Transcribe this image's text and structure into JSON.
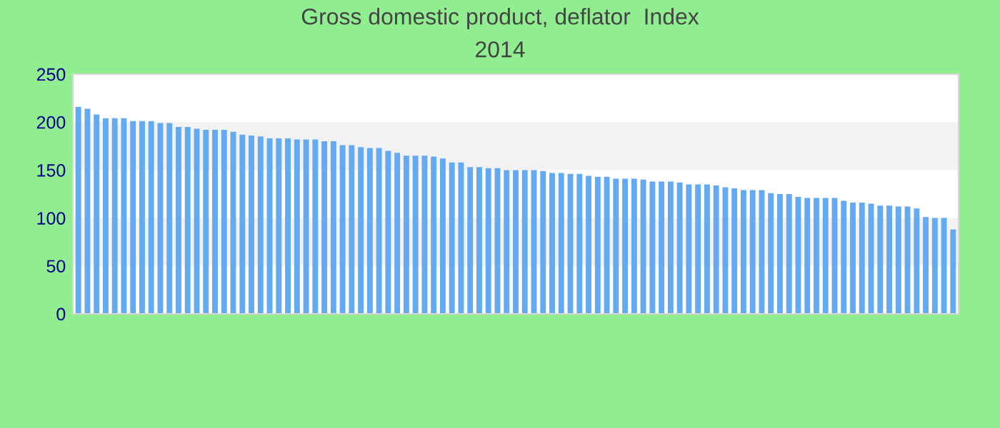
{
  "chart_data": {
    "type": "bar",
    "title": "Gross domestic product, deflator  Index",
    "subtitle": "2014",
    "categories": [
      null,
      null,
      null,
      null,
      null,
      null,
      null,
      null,
      null,
      null,
      null,
      null,
      null,
      null,
      null,
      null,
      null,
      null,
      null,
      null,
      null,
      null,
      null,
      null,
      null,
      null,
      null,
      null,
      null,
      null,
      null,
      null,
      null,
      null,
      null,
      null,
      null,
      null,
      null,
      null,
      null,
      null,
      null,
      null,
      null,
      null,
      null,
      null,
      null,
      null,
      null,
      null,
      null,
      null,
      null,
      null,
      null,
      null,
      null,
      null,
      null,
      null,
      null,
      null,
      null,
      null,
      null,
      null,
      null,
      null,
      null,
      null,
      null,
      null,
      null,
      null,
      null,
      null,
      null,
      null,
      null,
      null,
      null,
      null,
      null,
      null,
      null,
      null,
      null,
      null,
      null,
      null,
      null,
      null,
      null,
      null,
      null
    ],
    "values": [
      216,
      214,
      208,
      204,
      204,
      204,
      201,
      201,
      201,
      199,
      199,
      195,
      195,
      193,
      192,
      192,
      192,
      190,
      187,
      186,
      185,
      183,
      183,
      183,
      182,
      182,
      182,
      180,
      180,
      176,
      176,
      174,
      173,
      173,
      170,
      168,
      165,
      165,
      165,
      164,
      162,
      158,
      158,
      153,
      153,
      152,
      152,
      150,
      150,
      150,
      150,
      149,
      147,
      147,
      146,
      146,
      144,
      143,
      143,
      141,
      141,
      141,
      140,
      138,
      138,
      138,
      137,
      135,
      135,
      135,
      134,
      132,
      131,
      129,
      129,
      129,
      126,
      125,
      125,
      122,
      121,
      121,
      121,
      121,
      118,
      116,
      116,
      115,
      113,
      113,
      112,
      112,
      110,
      101,
      100,
      100,
      88
    ],
    "color": "#64aaf2",
    "ylim": [
      0,
      250
    ],
    "yticks": [
      0,
      50,
      100,
      150,
      200,
      250
    ],
    "bands": [
      {
        "axis": "y",
        "from": 150,
        "to": 200,
        "color": "#f2f2f2"
      },
      {
        "axis": "y",
        "from": 50,
        "to": 100,
        "color": "#f2f2f2"
      }
    ]
  }
}
